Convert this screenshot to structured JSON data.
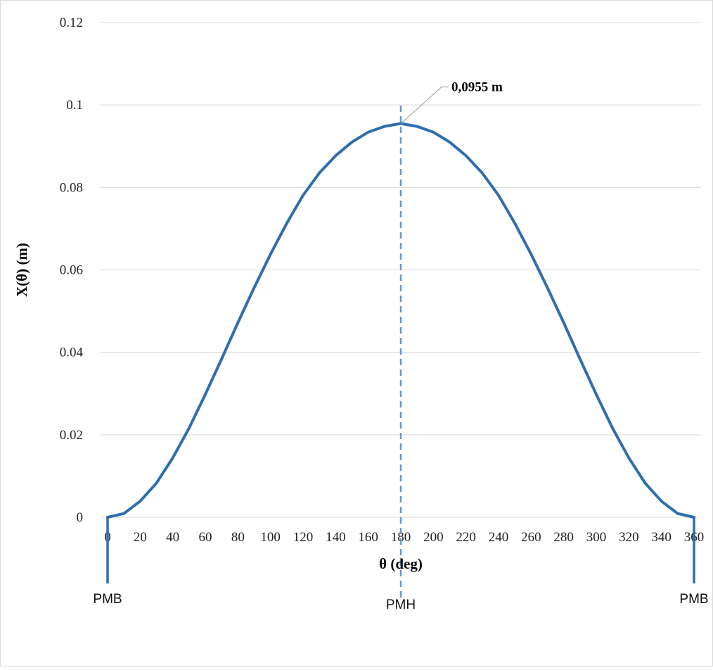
{
  "chart_data": {
    "type": "line",
    "title": "",
    "xlabel": "θ (deg)",
    "ylabel": "X(θ) (m)",
    "xlim": [
      0,
      360
    ],
    "ylim": [
      0,
      0.12
    ],
    "x_ticks": [
      0,
      20,
      40,
      60,
      80,
      100,
      120,
      140,
      160,
      180,
      200,
      220,
      240,
      260,
      280,
      300,
      320,
      340,
      360
    ],
    "y_ticks": [
      0,
      0.02,
      0.04,
      0.06,
      0.08,
      0.1,
      0.12
    ],
    "y_tick_labels": [
      "0",
      "0.02",
      "0.04",
      "0.06",
      "0.08",
      "0.1",
      "0.12"
    ],
    "grid": "horizontal",
    "legend": "none",
    "line_color": "#2e6ead",
    "guide_color": "#5a9bd8",
    "series": [
      {
        "x": [
          0,
          10,
          20,
          30,
          40,
          50,
          60,
          70,
          80,
          90,
          100,
          110,
          120,
          130,
          140,
          150,
          160,
          170,
          180,
          190,
          200,
          210,
          220,
          230,
          240,
          250,
          260,
          270,
          280,
          290,
          300,
          310,
          320,
          330,
          340,
          350,
          360
        ],
        "values": [
          0,
          0.0009,
          0.0039,
          0.0083,
          0.0144,
          0.0216,
          0.0298,
          0.0384,
          0.0472,
          0.0557,
          0.0638,
          0.0713,
          0.0781,
          0.0835,
          0.0877,
          0.091,
          0.0934,
          0.0948,
          0.0955,
          0.0948,
          0.0934,
          0.091,
          0.0877,
          0.0835,
          0.0781,
          0.0713,
          0.0638,
          0.0557,
          0.0472,
          0.0384,
          0.0298,
          0.0216,
          0.0144,
          0.0083,
          0.0039,
          0.0009,
          0
        ]
      }
    ],
    "annotation": {
      "text": "0,0955 m",
      "x": 180,
      "y": 0.0955
    },
    "guide_line_x": 180,
    "position_markers": [
      {
        "label": "PMB",
        "x": 0
      },
      {
        "label": "PMH",
        "x": 180
      },
      {
        "label": "PMB",
        "x": 360
      }
    ]
  }
}
